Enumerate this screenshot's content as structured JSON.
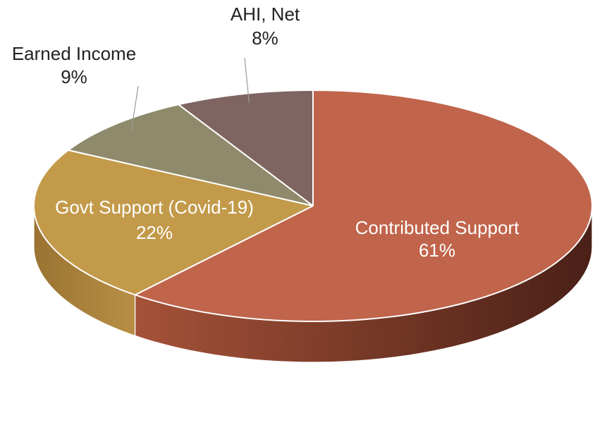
{
  "chart_data": {
    "type": "pie",
    "style": "3d",
    "start_angle_deg": 90,
    "direction": "clockwise",
    "slices": [
      {
        "label": "Contributed Support",
        "value": 61,
        "pct_label": "61%",
        "color": "#C0644B",
        "label_position": "inside"
      },
      {
        "label": "Govt Support (Covid-19)",
        "value": 22,
        "pct_label": "22%",
        "color": "#C29A4A",
        "label_position": "inside"
      },
      {
        "label": "Earned Income",
        "value": 9,
        "pct_label": "9%",
        "color": "#8E8A6B",
        "label_position": "outside"
      },
      {
        "label": "AHI, Net",
        "value": 8,
        "pct_label": "8%",
        "color": "#7E6561",
        "label_position": "outside"
      }
    ],
    "legend": false
  }
}
